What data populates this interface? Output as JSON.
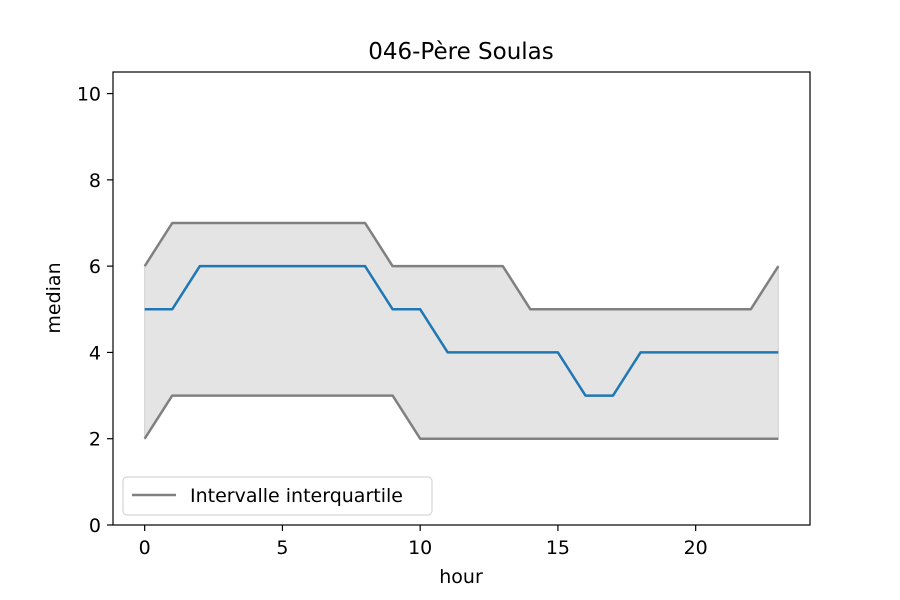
{
  "chart_data": {
    "type": "line",
    "title": "046-Père Soulas",
    "xlabel": "hour",
    "ylabel": "median",
    "xlim": [
      -1.15,
      24.15
    ],
    "ylim": [
      0,
      10.5
    ],
    "xticks": [
      0,
      5,
      10,
      15,
      20
    ],
    "yticks": [
      0,
      2,
      4,
      6,
      8,
      10
    ],
    "grid": false,
    "legend": {
      "placement": "lower-left",
      "entries": [
        "Intervalle interquartile"
      ]
    },
    "x": [
      0,
      1,
      2,
      3,
      4,
      5,
      6,
      7,
      8,
      9,
      10,
      11,
      12,
      13,
      14,
      15,
      16,
      17,
      18,
      19,
      20,
      21,
      22,
      23
    ],
    "series": [
      {
        "role": "median",
        "color": "#1f77b4",
        "values": [
          5,
          5,
          6,
          6,
          6,
          6,
          6,
          6,
          6,
          5,
          5,
          4,
          4,
          4,
          4,
          4,
          3,
          3,
          4,
          4,
          4,
          4,
          4,
          4
        ]
      },
      {
        "role": "q3",
        "color": "#808080",
        "values": [
          6,
          7,
          7,
          7,
          7,
          7,
          7,
          7,
          7,
          6,
          6,
          6,
          6,
          6,
          5,
          5,
          5,
          5,
          5,
          5,
          5,
          5,
          5,
          6
        ]
      },
      {
        "role": "q1",
        "color": "#808080",
        "values": [
          2,
          3,
          3,
          3,
          3,
          3,
          3,
          3,
          3,
          3,
          2,
          2,
          2,
          2,
          2,
          2,
          2,
          2,
          2,
          2,
          2,
          2,
          2,
          2
        ]
      }
    ],
    "band_color": "#e4e4e4"
  }
}
